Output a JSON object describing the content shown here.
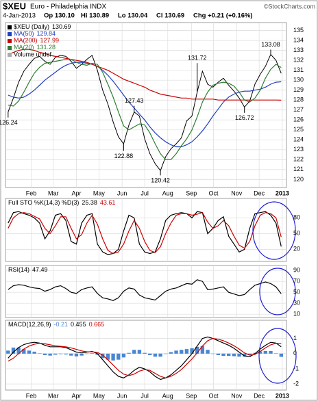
{
  "header": {
    "symbol": "$XEU",
    "name": "Euro - Philadelphia INDX",
    "source": "©StockCharts.com",
    "date": "4-Jan-2013",
    "quote": [
      "Op 130.10",
      "Hi 130.89",
      "Lo 130.04",
      "Cl 130.69",
      "Chg +0.21 (+0.16%)"
    ]
  },
  "chart_data": [
    {
      "type": "line",
      "ylim": [
        119.2,
        135.8
      ],
      "yticks": [
        120,
        121,
        122,
        123,
        124,
        125,
        126,
        127,
        128,
        129,
        130,
        131,
        132,
        133,
        134,
        135
      ],
      "grid": true,
      "xlim": [
        -0.5,
        53
      ],
      "xticks": [
        {
          "value": 4.4,
          "label": "Feb"
        },
        {
          "value": 8.6,
          "label": "Mar"
        },
        {
          "value": 13,
          "label": "Apr"
        },
        {
          "value": 17.3,
          "label": "May"
        },
        {
          "value": 21.7,
          "label": "Jun"
        },
        {
          "value": 26,
          "label": "Jul"
        },
        {
          "value": 30.4,
          "label": "Aug"
        },
        {
          "value": 34.9,
          "label": "Sep"
        },
        {
          "value": 39.1,
          "label": "Oct"
        },
        {
          "value": 43.5,
          "label": "Nov"
        },
        {
          "value": 47.8,
          "label": "Dec"
        },
        {
          "value": 52.2,
          "label": "2013"
        }
      ],
      "volume_label": "Volume undef",
      "annotations": [
        {
          "x": 0,
          "value": 126.24
        },
        {
          "x": 22,
          "value": 122.88
        },
        {
          "x": 24,
          "value": 127.43
        },
        {
          "x": 29,
          "value": 120.42
        },
        {
          "x": 36,
          "value": 131.72
        },
        {
          "x": 45,
          "value": 126.72
        },
        {
          "x": 50,
          "value": 133.08
        }
      ],
      "series": [
        {
          "name": "$XEU (Daily)",
          "color": "#000000",
          "values": [
            126.8,
            128.2,
            129.8,
            130.9,
            131.6,
            132.2,
            132.4,
            131.9,
            131.6,
            132.3,
            132.5,
            132.4,
            131.9,
            131.2,
            131.6,
            132.1,
            132.5,
            131.0,
            129.0,
            127.6,
            125.8,
            124.3,
            123.6,
            125.5,
            126.8,
            126.4,
            124.1,
            122.6,
            121.6,
            120.9,
            122.3,
            123.1,
            123.6,
            124.2,
            125.9,
            126.4,
            128.8,
            130.9,
            129.6,
            129.3,
            129.8,
            130.2,
            129.5,
            128.9,
            128.2,
            127.3,
            127.9,
            129.6,
            130.6,
            131.4,
            132.6,
            132.0,
            130.69
          ]
        },
        {
          "name": "MA(50)",
          "color": "#1f3fbf",
          "values": [
            128.5,
            128.3,
            128.2,
            128.3,
            128.6,
            129.0,
            129.5,
            130.0,
            130.4,
            130.8,
            131.2,
            131.5,
            131.7,
            131.8,
            131.8,
            131.7,
            131.6,
            131.4,
            131.0,
            130.5,
            129.9,
            129.2,
            128.5,
            127.8,
            127.2,
            126.6,
            126.0,
            125.3,
            124.7,
            124.2,
            123.8,
            123.5,
            123.3,
            123.3,
            123.5,
            123.8,
            124.3,
            124.9,
            125.6,
            126.4,
            127.1,
            127.8,
            128.3,
            128.6,
            128.8,
            128.9,
            128.9,
            129.0,
            129.1,
            129.3,
            129.6,
            129.8,
            129.84
          ]
        },
        {
          "name": "MA(200)",
          "color": "#cc0000",
          "values": [
            132.6,
            132.8,
            133.0,
            133.1,
            133.1,
            133.0,
            132.8,
            132.7,
            132.5,
            132.4,
            132.3,
            132.2,
            132.1,
            132.0,
            131.9,
            131.8,
            131.6,
            131.4,
            131.2,
            131.0,
            130.7,
            130.4,
            130.1,
            129.9,
            129.7,
            129.5,
            129.3,
            129.0,
            128.8,
            128.6,
            128.5,
            128.4,
            128.3,
            128.2,
            128.2,
            128.1,
            128.1,
            128.1,
            128.1,
            128.1,
            128.0,
            128.0,
            128.0,
            128.0,
            128.0,
            128.0,
            128.0,
            128.0,
            128.0,
            128.0,
            128.0,
            128.0,
            127.99
          ]
        },
        {
          "name": "MA(20)",
          "color": "#2e7d32",
          "values": [
            127.5,
            127.4,
            127.9,
            128.8,
            129.8,
            130.7,
            131.3,
            131.7,
            131.8,
            131.9,
            132.0,
            132.1,
            132.1,
            131.8,
            131.6,
            131.5,
            131.7,
            131.6,
            130.8,
            129.6,
            128.3,
            126.8,
            125.4,
            125.0,
            125.3,
            125.6,
            125.5,
            124.7,
            123.6,
            122.6,
            122.0,
            122.0,
            122.6,
            123.4,
            124.1,
            125.0,
            126.3,
            127.8,
            128.8,
            129.5,
            129.7,
            129.8,
            129.7,
            129.4,
            128.8,
            128.0,
            127.8,
            128.2,
            129.0,
            130.2,
            131.1,
            131.6,
            131.28
          ]
        }
      ]
    },
    {
      "type": "line",
      "title": "Full STO %K(14,3) %D(3)",
      "ylim": [
        -3,
        117
      ],
      "yticks": [
        20,
        50,
        80
      ],
      "grid": true,
      "series": [
        {
          "color": "#000000",
          "values": [
            70,
            90,
            92,
            88,
            85,
            80,
            70,
            40,
            55,
            85,
            88,
            75,
            35,
            30,
            70,
            85,
            88,
            30,
            15,
            10,
            12,
            20,
            55,
            85,
            80,
            30,
            15,
            12,
            15,
            40,
            75,
            85,
            88,
            90,
            88,
            80,
            92,
            90,
            50,
            60,
            75,
            82,
            45,
            30,
            15,
            20,
            60,
            88,
            90,
            92,
            85,
            70,
            25.38
          ]
        },
        {
          "color": "#cc0000",
          "values": [
            60,
            80,
            88,
            90,
            88,
            83,
            78,
            60,
            50,
            65,
            82,
            82,
            60,
            40,
            48,
            70,
            85,
            68,
            40,
            18,
            12,
            15,
            30,
            55,
            75,
            60,
            35,
            18,
            14,
            25,
            50,
            70,
            85,
            88,
            88,
            85,
            87,
            90,
            72,
            60,
            65,
            75,
            65,
            45,
            28,
            22,
            35,
            65,
            85,
            90,
            88,
            80,
            43.61
          ]
        }
      ]
    },
    {
      "type": "line",
      "title": "RSI(14)",
      "ylim": [
        4,
        99
      ],
      "yticks": [
        10,
        30,
        50,
        70,
        90
      ],
      "grid": true,
      "series": [
        {
          "color": "#000000",
          "values": [
            55,
            62,
            64,
            63,
            60,
            58,
            57,
            52,
            55,
            60,
            62,
            57,
            50,
            48,
            55,
            58,
            60,
            48,
            40,
            38,
            35,
            40,
            52,
            58,
            56,
            45,
            40,
            38,
            36,
            44,
            52,
            56,
            58,
            62,
            66,
            65,
            73,
            70,
            55,
            56,
            58,
            60,
            50,
            47,
            44,
            46,
            55,
            63,
            66,
            69,
            66,
            60,
            47.49
          ]
        }
      ]
    },
    {
      "type": "line",
      "title": "MACD(12,26,9)",
      "ylim": [
        -2.4,
        2.2
      ],
      "yticks": [
        -2,
        -1,
        0,
        1
      ],
      "grid": true,
      "series": [
        {
          "type": "bar",
          "color": "#4a86d0",
          "values": [
            0.2,
            0.4,
            0.4,
            0.3,
            0.2,
            0.13,
            0.02,
            -0.1,
            -0.13,
            -0.07,
            -0.03,
            -0.05,
            -0.13,
            -0.18,
            -0.13,
            -0.02,
            0.03,
            -0.08,
            -0.3,
            -0.4,
            -0.45,
            -0.4,
            -0.25,
            0.05,
            0.25,
            0.25,
            0.05,
            -0.1,
            -0.2,
            -0.2,
            0,
            0.1,
            0.2,
            0.25,
            0.3,
            0.35,
            0.45,
            0.5,
            0.25,
            0,
            -0.1,
            -0.15,
            -0.15,
            -0.17,
            -0.2,
            -0.2,
            -0.1,
            0.05,
            0.15,
            0.17,
            0.17,
            0.02,
            -0.21
          ]
        },
        {
          "color": "#000000",
          "values": [
            -0.3,
            0.1,
            0.4,
            0.6,
            0.7,
            0.75,
            0.7,
            0.55,
            0.45,
            0.45,
            0.45,
            0.4,
            0.25,
            0.1,
            0.05,
            0.1,
            0.15,
            0,
            -0.4,
            -0.8,
            -1.2,
            -1.5,
            -1.6,
            -1.4,
            -1.1,
            -0.9,
            -1.0,
            -1.2,
            -1.5,
            -1.7,
            -1.6,
            -1.4,
            -1.1,
            -0.8,
            -0.4,
            0,
            0.5,
            1.0,
            1.1,
            1.0,
            0.85,
            0.7,
            0.55,
            0.35,
            0.1,
            -0.15,
            -0.2,
            0,
            0.3,
            0.55,
            0.75,
            0.7,
            0.455
          ]
        },
        {
          "color": "#cc0000",
          "values": [
            -0.5,
            -0.3,
            0,
            0.3,
            0.5,
            0.62,
            0.68,
            0.65,
            0.58,
            0.52,
            0.48,
            0.45,
            0.38,
            0.28,
            0.18,
            0.12,
            0.12,
            0.08,
            -0.1,
            -0.4,
            -0.75,
            -1.1,
            -1.35,
            -1.45,
            -1.35,
            -1.15,
            -1.05,
            -1.1,
            -1.3,
            -1.5,
            -1.6,
            -1.5,
            -1.3,
            -1.05,
            -0.7,
            -0.35,
            0.05,
            0.5,
            0.85,
            1.0,
            0.95,
            0.85,
            0.7,
            0.52,
            0.3,
            0.05,
            -0.1,
            -0.05,
            0.15,
            0.38,
            0.58,
            0.68,
            0.665
          ]
        }
      ]
    }
  ]
}
